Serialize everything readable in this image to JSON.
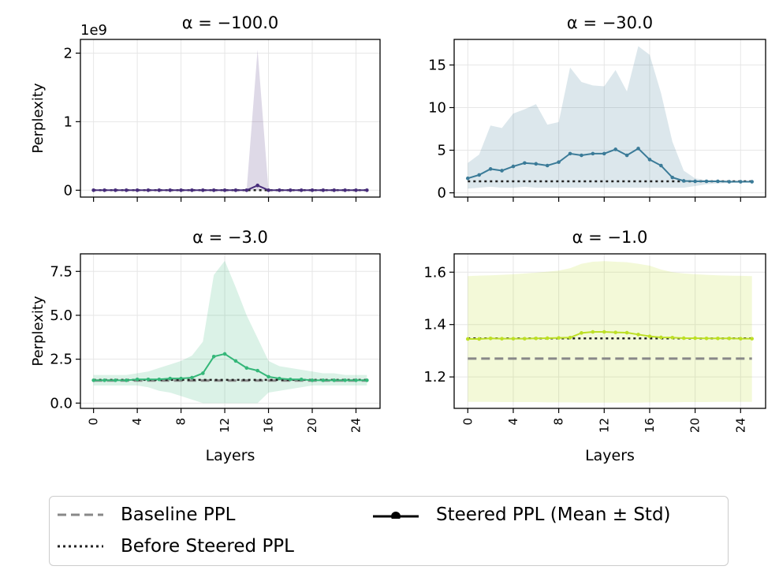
{
  "chart_data": [
    {
      "type": "line",
      "title": "α = −100.0",
      "offset_label": "1e9",
      "xlabel": "",
      "ylabel": "Perplexity",
      "x": [
        0,
        1,
        2,
        3,
        4,
        5,
        6,
        7,
        8,
        9,
        10,
        11,
        12,
        13,
        14,
        15,
        16,
        17,
        18,
        19,
        20,
        21,
        22,
        23,
        24,
        25
      ],
      "xlim": [
        -1.2,
        26.2
      ],
      "ylim": [
        -0.1,
        2.2
      ],
      "yticks": [
        0,
        1,
        2
      ],
      "yticklabels": [
        "0",
        "1",
        "2"
      ],
      "xticks": [
        0,
        4,
        8,
        12,
        16,
        20,
        24
      ],
      "xticklabels": [],
      "color": "#472c7a",
      "series": [
        {
          "values": [
            0,
            0,
            0,
            0,
            0,
            0,
            0,
            0,
            0,
            0,
            0,
            0,
            0,
            0,
            0,
            0.07,
            0,
            0,
            0,
            0,
            0,
            0,
            0,
            0,
            0,
            0
          ],
          "std_upper": [
            0,
            0,
            0,
            0,
            0,
            0,
            0,
            0,
            0,
            0,
            0,
            0,
            0,
            0,
            0,
            2.05,
            0,
            0,
            0,
            0,
            0,
            0,
            0,
            0,
            0,
            0
          ],
          "std_lower": [
            0,
            0,
            0,
            0,
            0,
            0,
            0,
            0,
            0,
            0,
            0,
            0,
            0,
            0,
            0,
            0,
            0,
            0,
            0,
            0,
            0,
            0,
            0,
            0,
            0,
            0
          ]
        }
      ],
      "before_steered": 0,
      "baseline": null
    },
    {
      "type": "line",
      "title": "α = −30.0",
      "xlabel": "",
      "ylabel": "",
      "x": [
        0,
        1,
        2,
        3,
        4,
        5,
        6,
        7,
        8,
        9,
        10,
        11,
        12,
        13,
        14,
        15,
        16,
        17,
        18,
        19,
        20,
        21,
        22,
        23,
        24,
        25
      ],
      "xlim": [
        -1.2,
        26.2
      ],
      "ylim": [
        -0.5,
        18
      ],
      "yticks": [
        0,
        5,
        10,
        15
      ],
      "yticklabels": [
        "0",
        "5",
        "10",
        "15"
      ],
      "xticks": [
        0,
        4,
        8,
        12,
        16,
        20,
        24
      ],
      "xticklabels": [],
      "color": "#3b7b98",
      "series": [
        {
          "values": [
            1.7,
            2.1,
            2.8,
            2.6,
            3.1,
            3.5,
            3.4,
            3.2,
            3.6,
            4.6,
            4.4,
            4.6,
            4.6,
            5.1,
            4.4,
            5.2,
            3.9,
            3.2,
            1.8,
            1.4,
            1.35,
            1.35,
            1.35,
            1.3,
            1.3,
            1.3
          ],
          "std_upper": [
            3.5,
            4.5,
            7.9,
            7.6,
            9.3,
            9.8,
            10.4,
            8.0,
            8.3,
            14.7,
            13.0,
            12.6,
            12.5,
            14.4,
            11.9,
            17.2,
            16.2,
            11.7,
            6.0,
            2.6,
            1.7,
            1.5,
            1.45,
            1.4,
            1.4,
            1.4
          ],
          "std_lower": [
            0.5,
            0.6,
            0.7,
            0.6,
            0.6,
            0.7,
            0.6,
            0.6,
            0.6,
            0.6,
            0.6,
            0.6,
            0.6,
            0.6,
            0.6,
            0.6,
            0.6,
            0.6,
            0.6,
            0.6,
            0.8,
            1.0,
            1.1,
            1.15,
            1.2,
            1.2
          ]
        }
      ],
      "before_steered": 1.35,
      "baseline": null
    },
    {
      "type": "line",
      "title": "α = −3.0",
      "xlabel": "Layers",
      "ylabel": "Perplexity",
      "x": [
        0,
        1,
        2,
        3,
        4,
        5,
        6,
        7,
        8,
        9,
        10,
        11,
        12,
        13,
        14,
        15,
        16,
        17,
        18,
        19,
        20,
        21,
        22,
        23,
        24,
        25
      ],
      "xlim": [
        -1.2,
        26.2
      ],
      "ylim": [
        -0.3,
        8.5
      ],
      "yticks": [
        0,
        2.5,
        5,
        7.5
      ],
      "yticklabels": [
        "0.0",
        "2.5",
        "5.0",
        "7.5"
      ],
      "xticks": [
        0,
        4,
        8,
        12,
        16,
        20,
        24
      ],
      "xticklabels": [
        "0",
        "4",
        "8",
        "12",
        "16",
        "20",
        "24"
      ],
      "color": "#35b779",
      "series": [
        {
          "values": [
            1.3,
            1.3,
            1.3,
            1.3,
            1.35,
            1.35,
            1.35,
            1.4,
            1.4,
            1.45,
            1.7,
            2.65,
            2.8,
            2.4,
            2.0,
            1.85,
            1.5,
            1.4,
            1.35,
            1.35,
            1.3,
            1.3,
            1.3,
            1.3,
            1.3,
            1.3
          ],
          "std_upper": [
            1.6,
            1.6,
            1.6,
            1.6,
            1.7,
            1.8,
            2.0,
            2.2,
            2.4,
            2.7,
            3.5,
            7.3,
            8.1,
            6.6,
            5.0,
            3.7,
            2.4,
            2.1,
            2.0,
            1.9,
            1.8,
            1.7,
            1.7,
            1.6,
            1.6,
            1.6
          ],
          "std_lower": [
            1.0,
            1.0,
            1.0,
            1.0,
            1.0,
            0.9,
            0.7,
            0.6,
            0.4,
            0.2,
            0,
            0,
            0,
            0,
            0,
            0,
            0.6,
            0.7,
            0.8,
            0.9,
            1.0,
            1.0,
            1.0,
            1.0,
            1.0,
            1.0
          ]
        }
      ],
      "before_steered": 1.32,
      "baseline": 1.28
    },
    {
      "type": "line",
      "title": "α = −1.0",
      "xlabel": "Layers",
      "ylabel": "",
      "x": [
        0,
        1,
        2,
        3,
        4,
        5,
        6,
        7,
        8,
        9,
        10,
        11,
        12,
        13,
        14,
        15,
        16,
        17,
        18,
        19,
        20,
        21,
        22,
        23,
        24,
        25
      ],
      "xlim": [
        -1.2,
        26.2
      ],
      "ylim": [
        1.08,
        1.67
      ],
      "yticks": [
        1.2,
        1.4,
        1.6
      ],
      "yticklabels": [
        "1.2",
        "1.4",
        "1.6"
      ],
      "xticks": [
        0,
        4,
        8,
        12,
        16,
        20,
        24
      ],
      "xticklabels": [
        "0",
        "4",
        "8",
        "12",
        "16",
        "20",
        "24"
      ],
      "color": "#bddf26",
      "series": [
        {
          "values": [
            1.345,
            1.345,
            1.347,
            1.346,
            1.346,
            1.346,
            1.347,
            1.348,
            1.349,
            1.35,
            1.368,
            1.372,
            1.372,
            1.37,
            1.369,
            1.362,
            1.355,
            1.351,
            1.35,
            1.348,
            1.348,
            1.347,
            1.347,
            1.347,
            1.346,
            1.346
          ],
          "std_upper": [
            1.585,
            1.587,
            1.588,
            1.59,
            1.592,
            1.595,
            1.598,
            1.602,
            1.606,
            1.615,
            1.632,
            1.64,
            1.642,
            1.64,
            1.638,
            1.632,
            1.625,
            1.61,
            1.6,
            1.595,
            1.592,
            1.59,
            1.588,
            1.587,
            1.586,
            1.585
          ],
          "std_lower": [
            1.105,
            1.105,
            1.105,
            1.104,
            1.104,
            1.104,
            1.104,
            1.103,
            1.103,
            1.103,
            1.102,
            1.102,
            1.102,
            1.102,
            1.102,
            1.102,
            1.103,
            1.103,
            1.103,
            1.104,
            1.104,
            1.104,
            1.105,
            1.105,
            1.105,
            1.105
          ]
        }
      ],
      "before_steered": 1.347,
      "baseline": 1.27
    }
  ],
  "legend": {
    "baseline_label": "Baseline PPL",
    "before_label": "Before Steered PPL",
    "steered_label": "Steered PPL (Mean ± Std)"
  },
  "colors": {
    "baseline": "#888888",
    "before": "#222222",
    "steered_marker": "#000000"
  }
}
